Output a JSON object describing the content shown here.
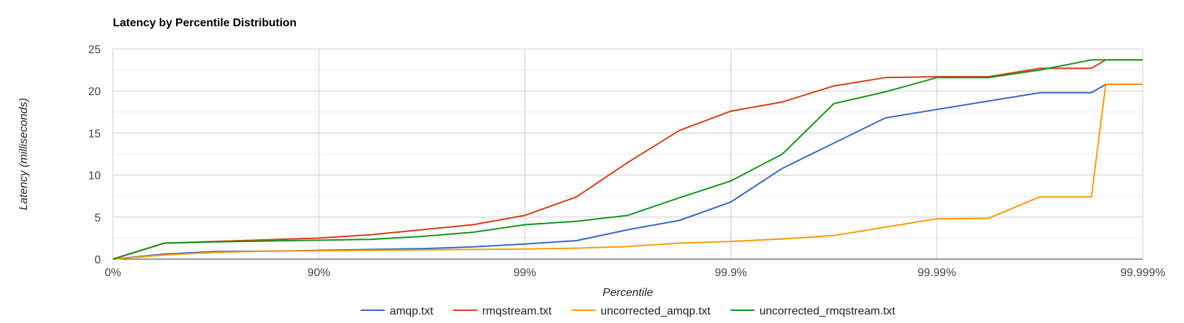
{
  "chart_data": {
    "type": "line",
    "title": "Latency by Percentile Distribution",
    "xlabel": "Percentile",
    "ylabel": "Latency (milliseconds)",
    "x_scale": "log-percentile",
    "x_ticks": [
      "0%",
      "90%",
      "99%",
      "99.9%",
      "99.99%",
      "99.999%"
    ],
    "y_ticks": [
      "0",
      "5",
      "10",
      "15",
      "20",
      "25"
    ],
    "ylim": [
      0,
      25
    ],
    "grid": true,
    "legend_position": "bottom",
    "x": [
      0,
      0.25,
      0.5,
      0.75,
      1,
      1.25,
      1.5,
      1.75,
      2,
      2.25,
      2.5,
      2.75,
      3,
      3.25,
      3.5,
      3.75,
      4,
      4.25,
      4.5,
      4.75,
      4.82,
      5
    ],
    "series": [
      {
        "name": "amqp.txt",
        "color": "#3366cc",
        "values": [
          0,
          0.6,
          0.9,
          0.95,
          1.05,
          1.15,
          1.25,
          1.45,
          1.8,
          2.2,
          3.5,
          4.6,
          6.8,
          10.8,
          13.8,
          16.8,
          17.8,
          18.8,
          19.8,
          19.8,
          20.8,
          20.8
        ]
      },
      {
        "name": "rmqstream.txt",
        "color": "#dc3912",
        "values": [
          0,
          1.9,
          2.1,
          2.3,
          2.5,
          2.9,
          3.5,
          4.1,
          5.2,
          7.4,
          11.5,
          15.3,
          17.6,
          18.7,
          20.6,
          21.6,
          21.7,
          21.7,
          22.7,
          22.7,
          23.7,
          23.7
        ]
      },
      {
        "name": "uncorrected_amqp.txt",
        "color": "#ff9900",
        "values": [
          0,
          0.5,
          0.8,
          0.95,
          1.0,
          1.05,
          1.1,
          1.15,
          1.2,
          1.3,
          1.5,
          1.9,
          2.1,
          2.4,
          2.8,
          3.8,
          4.8,
          4.85,
          7.4,
          7.4,
          20.8,
          20.8
        ]
      },
      {
        "name": "uncorrected_rmqstream.txt",
        "color": "#109618",
        "values": [
          0,
          1.9,
          2.05,
          2.15,
          2.25,
          2.35,
          2.7,
          3.2,
          4.1,
          4.5,
          5.2,
          7.3,
          9.3,
          12.5,
          18.5,
          19.9,
          21.6,
          21.6,
          22.5,
          23.7,
          23.7,
          23.7
        ]
      }
    ]
  }
}
